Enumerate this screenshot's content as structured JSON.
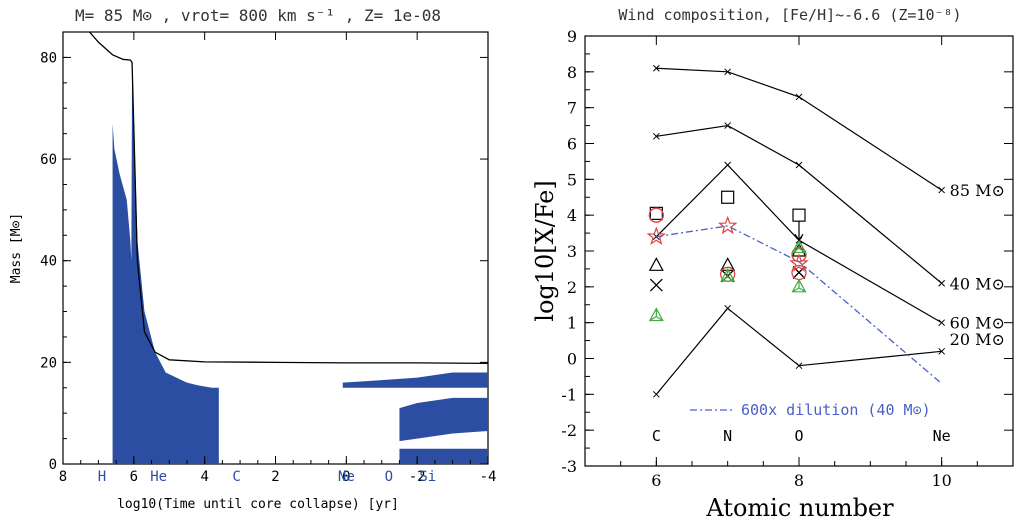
{
  "chart_data": [
    {
      "type": "area",
      "title": "M= 85 M⊙ , vrot= 800 km s⁻¹ , Z= 1e-08",
      "xlabel": "log10(Time until core collapse) [yr]",
      "ylabel": "Mass [M⊙]",
      "xlim": [
        8,
        -4
      ],
      "ylim": [
        0,
        85
      ],
      "x_ticks": [
        "8",
        "6",
        "4",
        "2",
        "0",
        "-2",
        "-4"
      ],
      "y_ticks": [
        "0",
        "20",
        "40",
        "60",
        "80"
      ],
      "burning_stages": [
        "H",
        "He",
        "C",
        "Ne",
        "O",
        "Si"
      ],
      "total_mass": {
        "x": [
          8.0,
          7.5,
          7.0,
          6.6,
          6.3,
          6.1,
          6.05,
          5.9,
          5.7,
          5.4,
          5.0,
          4.0,
          2.0,
          0.0,
          -2.0,
          -4.0
        ],
        "y": [
          92,
          87,
          83,
          80.5,
          79.6,
          79.5,
          79.0,
          40,
          26,
          22,
          20.5,
          20.1,
          20.0,
          19.9,
          19.9,
          19.8
        ]
      },
      "convective_core": {
        "x": [
          6.6,
          6.55,
          6.4,
          6.2,
          6.1,
          6.07,
          6.05,
          5.9,
          5.7,
          5.4,
          5.1,
          4.5,
          4.2,
          3.8,
          3.6
        ],
        "y": [
          67,
          62,
          57,
          52,
          44,
          40,
          79,
          44,
          30,
          22,
          18,
          16,
          15.5,
          15,
          15
        ]
      },
      "shell_convection": [
        {
          "x": [
            0.1,
            -1.0,
            -2.0,
            -3.0,
            -4.0
          ],
          "y_bottom": [
            15,
            15,
            15,
            15,
            15
          ],
          "y_top": [
            16,
            16.5,
            17,
            18,
            18
          ]
        },
        {
          "x": [
            -1.5,
            -2.0,
            -3.0,
            -4.0
          ],
          "y_bottom": [
            4.5,
            5,
            6,
            6.5
          ],
          "y_top": [
            11,
            12,
            13,
            13
          ]
        },
        {
          "x": [
            -1.5,
            -4.0
          ],
          "y_bottom": [
            0,
            0
          ],
          "y_top": [
            3,
            3
          ]
        }
      ],
      "colors": {
        "convection": "#2b4ea3",
        "line": "#000000",
        "stage_labels": "#2b4ea3"
      }
    },
    {
      "type": "line",
      "title": "Wind composition, [Fe/H]~-6.6 (Z=10⁻⁸)",
      "xlabel": "Atomic number",
      "ylabel": "log10[X/Fe]",
      "xlim": [
        5,
        11
      ],
      "ylim": [
        -3,
        9
      ],
      "x_ticks": [
        "6",
        "8",
        "10"
      ],
      "y_ticks": [
        "9",
        "8",
        "7",
        "6",
        "5",
        "4",
        "3",
        "2",
        "1",
        "0",
        "-1",
        "-2",
        "-3"
      ],
      "element_labels": [
        "C",
        "N",
        "O",
        "Ne"
      ],
      "x": [
        6,
        7,
        8,
        10
      ],
      "series": [
        {
          "name": "85 M⊙",
          "values": [
            8.1,
            8.0,
            7.3,
            4.7
          ]
        },
        {
          "name": "40 M⊙",
          "values": [
            6.2,
            6.5,
            5.4,
            2.1
          ]
        },
        {
          "name": "60 M⊙",
          "values": [
            3.4,
            5.4,
            3.3,
            1.0
          ]
        },
        {
          "name": "20 M⊙",
          "values": [
            -1.0,
            1.4,
            -0.2,
            0.2
          ]
        }
      ],
      "dilution": {
        "name": "600x dilution (40 M⊙)",
        "values": [
          3.4,
          3.7,
          2.7,
          -0.7
        ],
        "color": "#4a5fc9"
      },
      "observations": {
        "squares": [
          {
            "x": 6,
            "y": 4.05
          },
          {
            "x": 7,
            "y": 4.5
          },
          {
            "x": 8,
            "y": 4.0
          }
        ],
        "triangles": [
          {
            "x": 6,
            "y": 2.6
          },
          {
            "x": 7,
            "y": 2.6
          },
          {
            "x": 8,
            "y": 3.0
          }
        ],
        "crosses": [
          {
            "x": 6,
            "y": 2.05
          },
          {
            "x": 7,
            "y": 2.3
          },
          {
            "x": 8,
            "y": 2.4
          }
        ],
        "red_circles": [
          {
            "x": 6,
            "y": 4.0
          },
          {
            "x": 7,
            "y": 2.35
          },
          {
            "x": 8,
            "y": 2.4
          },
          {
            "x": 8,
            "y": 2.9
          }
        ],
        "red_stars": [
          {
            "x": 6,
            "y": 3.4
          },
          {
            "x": 7,
            "y": 3.7
          },
          {
            "x": 8,
            "y": 2.65
          }
        ],
        "green_triangles": [
          {
            "x": 6,
            "y": 1.2
          },
          {
            "x": 7,
            "y": 2.3
          },
          {
            "x": 8,
            "y": 2.0
          },
          {
            "x": 8,
            "y": 3.1
          }
        ],
        "upper_limits": [
          {
            "x": 8,
            "y": 4.0,
            "to": 3.3
          }
        ]
      },
      "colors": {
        "lines": "#000000",
        "red": "#e04040",
        "green": "#44aa44",
        "blue": "#4a5fc9"
      }
    }
  ]
}
